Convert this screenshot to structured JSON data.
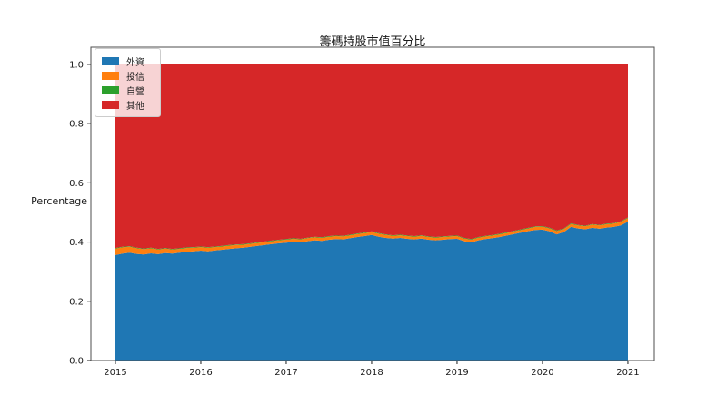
{
  "chart_data": {
    "type": "area",
    "stacked": true,
    "title": "籌碼持股市值百分比",
    "ylabel": "Percentage",
    "xlabel": "",
    "legend_position": "upper-left",
    "grid": false,
    "x_unit": "decimal_year",
    "x_start": 2015.0,
    "x_end": 2021.0,
    "n_points": 73,
    "interval": "monthly",
    "xlim": [
      2014.713,
      2021.309
    ],
    "ylim": [
      0.0,
      1.058
    ],
    "x_ticks": [
      "2015",
      "2016",
      "2017",
      "2018",
      "2019",
      "2020",
      "2021"
    ],
    "y_ticks": [
      "0.0",
      "0.2",
      "0.4",
      "0.6",
      "0.8",
      "1.0"
    ],
    "y_tick_values": [
      0.0,
      0.2,
      0.4,
      0.6,
      0.8,
      1.0
    ],
    "series": [
      {
        "name": "外資",
        "color": "#1f77b4",
        "values": [
          0.356,
          0.361,
          0.364,
          0.36,
          0.358,
          0.362,
          0.359,
          0.363,
          0.361,
          0.364,
          0.367,
          0.369,
          0.371,
          0.369,
          0.372,
          0.374,
          0.377,
          0.379,
          0.381,
          0.384,
          0.387,
          0.39,
          0.393,
          0.396,
          0.398,
          0.401,
          0.399,
          0.403,
          0.406,
          0.404,
          0.408,
          0.41,
          0.409,
          0.413,
          0.417,
          0.42,
          0.424,
          0.418,
          0.414,
          0.412,
          0.414,
          0.411,
          0.409,
          0.412,
          0.408,
          0.406,
          0.408,
          0.41,
          0.411,
          0.403,
          0.399,
          0.406,
          0.41,
          0.413,
          0.417,
          0.422,
          0.427,
          0.432,
          0.437,
          0.441,
          0.442,
          0.436,
          0.426,
          0.434,
          0.451,
          0.446,
          0.443,
          0.448,
          0.445,
          0.449,
          0.451,
          0.456,
          0.469
        ]
      },
      {
        "name": "投信",
        "color": "#ff7f0e",
        "values": [
          0.022,
          0.021,
          0.02,
          0.019,
          0.018,
          0.017,
          0.016,
          0.015,
          0.014,
          0.013,
          0.013,
          0.012,
          0.012,
          0.012,
          0.011,
          0.011,
          0.011,
          0.011,
          0.01,
          0.01,
          0.01,
          0.01,
          0.01,
          0.01,
          0.01,
          0.01,
          0.01,
          0.01,
          0.01,
          0.01,
          0.01,
          0.01,
          0.01,
          0.01,
          0.01,
          0.01,
          0.01,
          0.01,
          0.01,
          0.009,
          0.009,
          0.009,
          0.009,
          0.009,
          0.009,
          0.009,
          0.009,
          0.009,
          0.009,
          0.009,
          0.009,
          0.009,
          0.009,
          0.009,
          0.009,
          0.009,
          0.009,
          0.009,
          0.009,
          0.01,
          0.01,
          0.01,
          0.011,
          0.01,
          0.01,
          0.01,
          0.01,
          0.011,
          0.011,
          0.011,
          0.011,
          0.012,
          0.012
        ]
      },
      {
        "name": "自營",
        "color": "#2ca02c",
        "constant": 0.002
      },
      {
        "name": "其他",
        "color": "#d62728",
        "complement_to": 1.0
      }
    ]
  }
}
